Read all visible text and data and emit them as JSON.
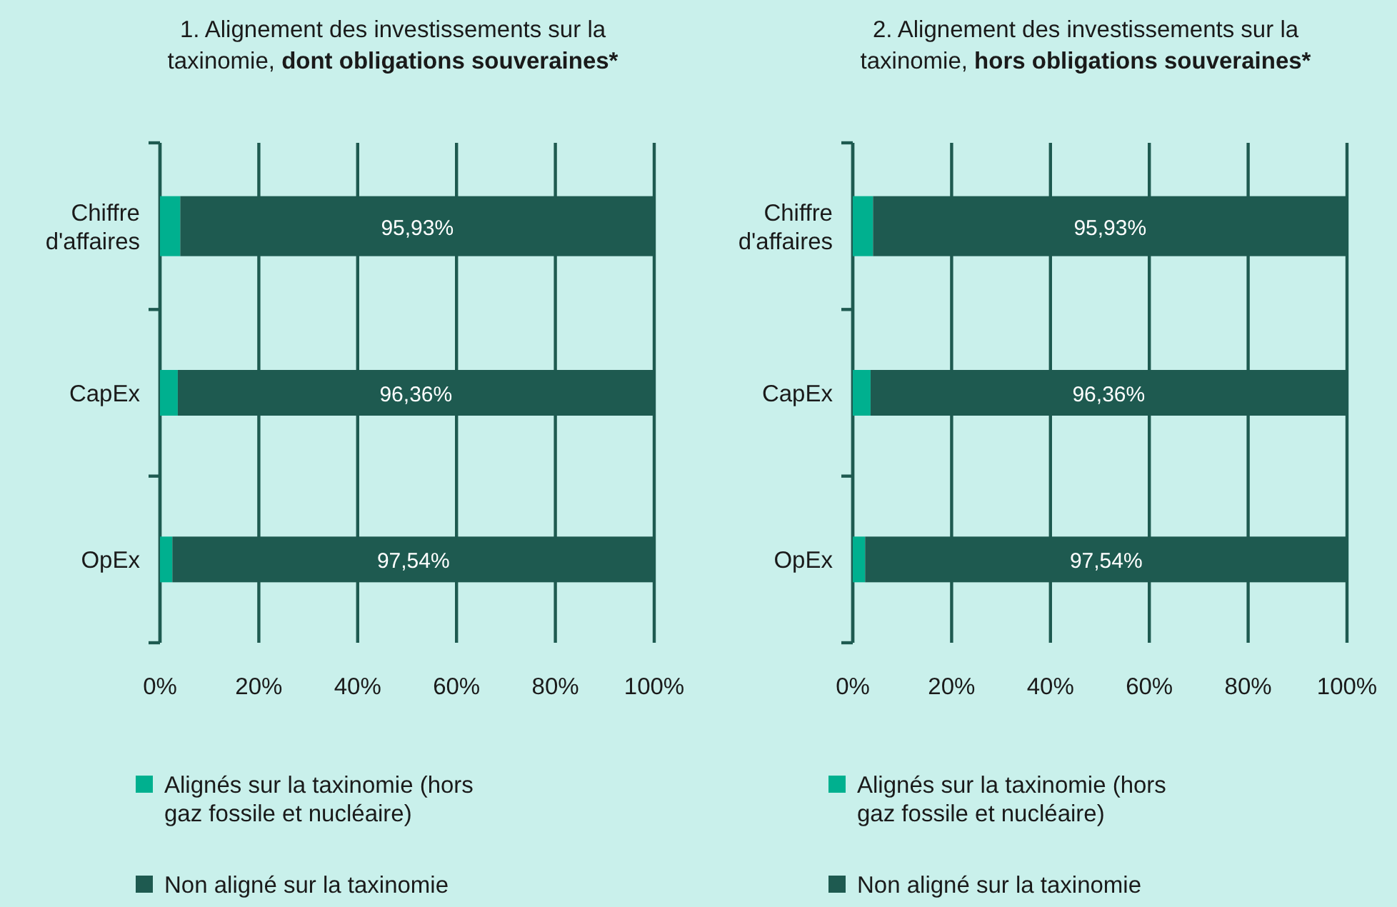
{
  "chart_data": [
    {
      "type": "bar",
      "orientation": "horizontal",
      "stacked": true,
      "title": "1. Alignement des investissements sur la taxinomie, dont obligations souveraines*",
      "categories": [
        "Chiffre d'affaires",
        "CapEx",
        "OpEx"
      ],
      "xlim": [
        0,
        100
      ],
      "xticks": [
        {
          "value": 0,
          "label": "0%"
        },
        {
          "value": 20,
          "label": "20%"
        },
        {
          "value": 40,
          "label": "40%"
        },
        {
          "value": 60,
          "label": "60%"
        },
        {
          "value": 80,
          "label": "80%"
        },
        {
          "value": 100,
          "label": "100%"
        }
      ],
      "grid": "x",
      "legend": "bottom",
      "series": [
        {
          "name": "Alignés sur la taxinomie (hors gaz fossile et nucléaire)",
          "color": "#00b08f",
          "values": [
            4.1,
            3.6,
            2.5
          ]
        },
        {
          "name": "Non aligné sur la taxinomie",
          "color": "#1e5a50",
          "values": [
            95.93,
            96.36,
            97.54
          ],
          "value_labels": [
            "95,93%",
            "96,36%",
            "97,54%"
          ]
        }
      ]
    },
    {
      "type": "bar",
      "orientation": "horizontal",
      "stacked": true,
      "title": "2. Alignement des investissements sur la taxinomie, hors obligations souveraines*",
      "categories": [
        "Chiffre d'affaires",
        "CapEx",
        "OpEx"
      ],
      "xlim": [
        0,
        100
      ],
      "xticks": [
        {
          "value": 0,
          "label": "0%"
        },
        {
          "value": 20,
          "label": "20%"
        },
        {
          "value": 40,
          "label": "40%"
        },
        {
          "value": 60,
          "label": "60%"
        },
        {
          "value": 80,
          "label": "80%"
        },
        {
          "value": 100,
          "label": "100%"
        }
      ],
      "grid": "x",
      "legend": "bottom",
      "series": [
        {
          "name": "Alignés sur la taxinomie (hors gaz fossile et nucléaire)",
          "color": "#00b08f",
          "values": [
            4.1,
            3.6,
            2.5
          ]
        },
        {
          "name": "Non aligné sur la taxinomie",
          "color": "#1e5a50",
          "values": [
            95.93,
            96.36,
            97.54
          ],
          "value_labels": [
            "95,93%",
            "96,36%",
            "97,54%"
          ]
        }
      ]
    }
  ]
}
